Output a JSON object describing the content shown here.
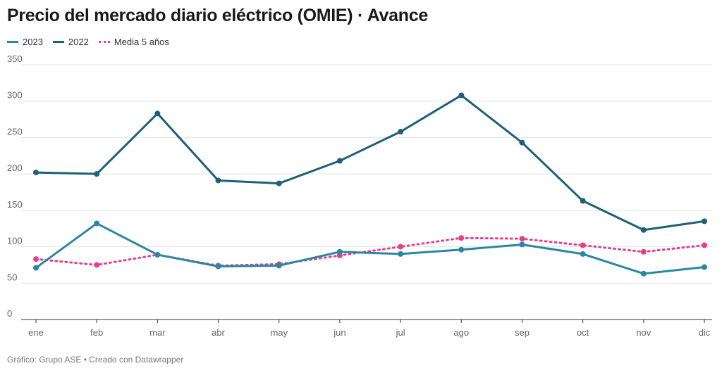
{
  "title": "Precio del mercado diario eléctrico (OMIE) · Avance",
  "footer": "Gráfico: Grupo ASE • Creado con Datawrapper",
  "chart_data": {
    "type": "line",
    "title": "Precio del mercado diario eléctrico (OMIE) · Avance",
    "xlabel": "",
    "ylabel": "",
    "categories": [
      "ene",
      "feb",
      "mar",
      "abr",
      "may",
      "jun",
      "jul",
      "ago",
      "sep",
      "oct",
      "nov",
      "dic"
    ],
    "ylim": [
      0,
      350
    ],
    "yticks": [
      0,
      50,
      100,
      150,
      200,
      250,
      300,
      350
    ],
    "grid": true,
    "legend_position": "top-left",
    "series": [
      {
        "name": "2023",
        "style": "solid",
        "color": "#2a87a2",
        "values": [
          71,
          132,
          89,
          73,
          74,
          93,
          90,
          96,
          103,
          90,
          63,
          72
        ]
      },
      {
        "name": "2022",
        "style": "solid",
        "color": "#1e5f7a",
        "values": [
          202,
          200,
          283,
          191,
          187,
          218,
          258,
          308,
          243,
          163,
          123,
          135
        ]
      },
      {
        "name": "Media 5 años",
        "style": "dotted",
        "color": "#e83e8c",
        "values": [
          83,
          75,
          89,
          74,
          76,
          88,
          100,
          112,
          111,
          102,
          93,
          102
        ]
      }
    ]
  }
}
